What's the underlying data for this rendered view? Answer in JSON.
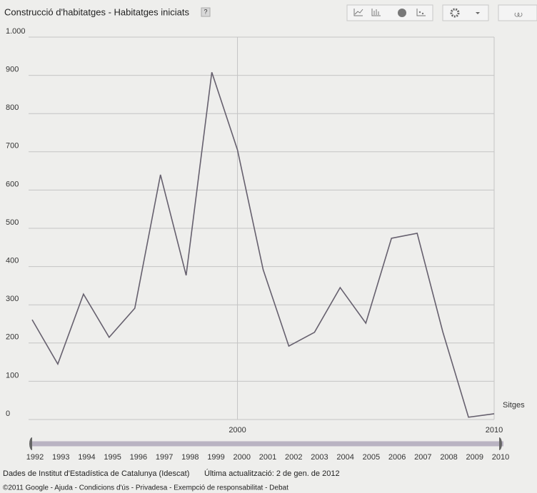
{
  "chart_data": {
    "type": "line",
    "title": "Construcció d'habitatges - Habitatges iniciats",
    "help": "?",
    "x": [
      1992,
      1993,
      1994,
      1995,
      1996,
      1997,
      1998,
      1999,
      2000,
      2001,
      2002,
      2003,
      2004,
      2005,
      2006,
      2007,
      2008,
      2009,
      2010
    ],
    "series": [
      {
        "name": "Sitges",
        "color": "#66606e",
        "values": [
          261,
          145,
          328,
          215,
          291,
          640,
          377,
          908,
          705,
          392,
          192,
          228,
          345,
          252,
          474,
          487,
          229,
          6,
          15
        ]
      }
    ],
    "xlim": [
      1992,
      2010
    ],
    "xticks": [
      2000,
      2010
    ],
    "ylim": [
      0,
      1000
    ],
    "yticks": [
      0,
      100,
      200,
      300,
      400,
      500,
      600,
      700,
      800,
      900,
      {
        "value": 1000,
        "label": "1.000"
      }
    ],
    "grid": true
  },
  "footer": {
    "source": "Dades de Institut d'Estadística de Catalunya (Idescat)",
    "updated": "Última actualització: 2 de gen. de 2012",
    "links": "©2011 Google - Ajuda - Condicions d'ús - Privadesa - Exempció de responsabilitat - Debat"
  }
}
